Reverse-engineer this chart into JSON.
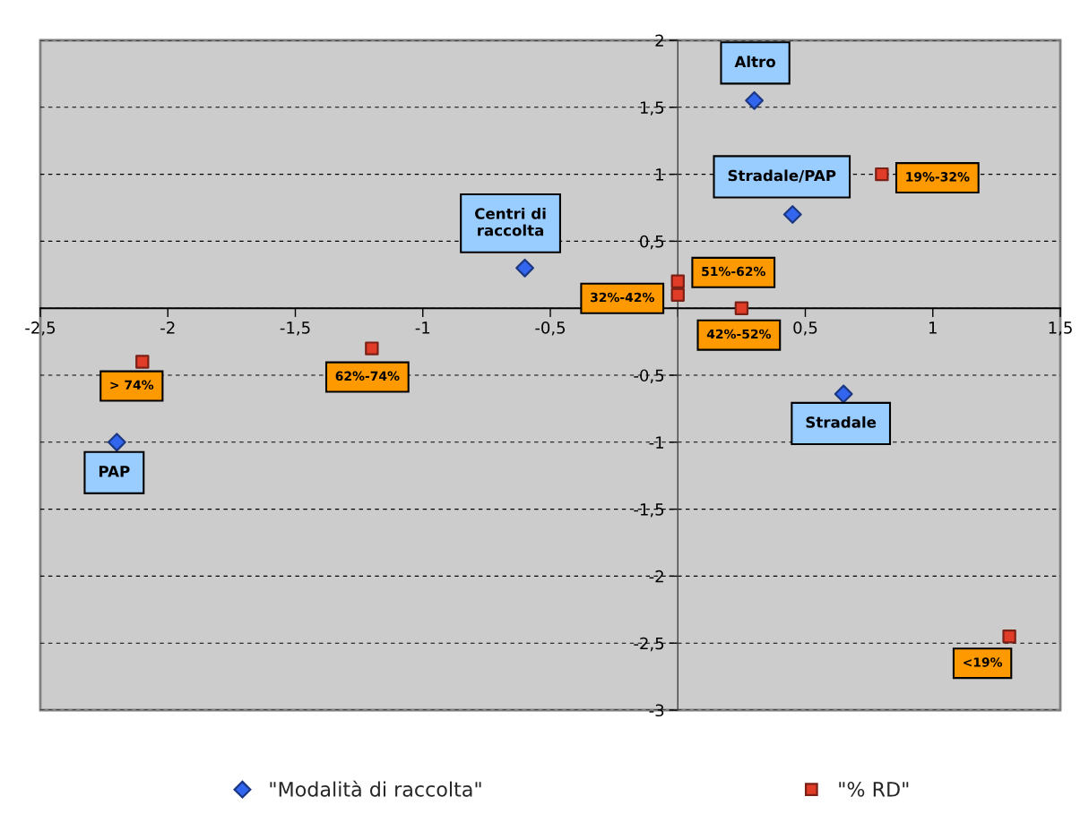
{
  "chart_data": {
    "type": "scatter",
    "xlim": [
      -2.5,
      1.5
    ],
    "ylim": [
      -3,
      2
    ],
    "xticks": [
      {
        "value": -2.5,
        "label": "-2,5"
      },
      -2,
      {
        "value": -1.5,
        "label": "-1,5"
      },
      -1,
      {
        "value": -0.5,
        "label": "-0,5"
      },
      {
        "value": 0,
        "label": null
      },
      {
        "value": 0.5,
        "label": "0,5"
      },
      1,
      {
        "value": 1.5,
        "label": "1,5"
      }
    ],
    "yticks": [
      -3,
      {
        "value": -2.5,
        "label": "-2,5"
      },
      -2,
      {
        "value": -1.5,
        "label": "-1,5"
      },
      -1,
      {
        "value": -0.5,
        "label": "-0,5"
      },
      {
        "value": 0,
        "label": null
      },
      {
        "value": 0.5,
        "label": "0,5"
      },
      1,
      {
        "value": 1.5,
        "label": "1,5"
      },
      2
    ],
    "grid": "y",
    "legend": "bottom",
    "series": [
      {
        "name": "\"Modalità di raccolta\"",
        "color": "#3366ee",
        "marker": "diamond",
        "x": [
          0.3,
          0.45,
          -0.6,
          -2.2,
          0.65
        ],
        "values": [
          1.55,
          0.7,
          0.3,
          -1.0,
          -0.64
        ],
        "value_labels": [
          "Altro",
          "Stradale/PAP",
          "Centri di\nraccolta",
          "PAP",
          "Stradale"
        ]
      },
      {
        "name": "\"% RD\"",
        "color": "#e03c28",
        "marker": "square",
        "x": [
          -2.1,
          -1.2,
          0,
          0,
          0.25,
          0.8,
          1.3
        ],
        "values": [
          -0.4,
          -0.3,
          0.1,
          0.2,
          0,
          1.0,
          -2.45
        ],
        "value_labels": [
          "> 74%",
          "62%-74%",
          "32%-42%",
          "51%-62%",
          "42%-52%",
          "19%-32%",
          "<19%"
        ]
      }
    ]
  }
}
